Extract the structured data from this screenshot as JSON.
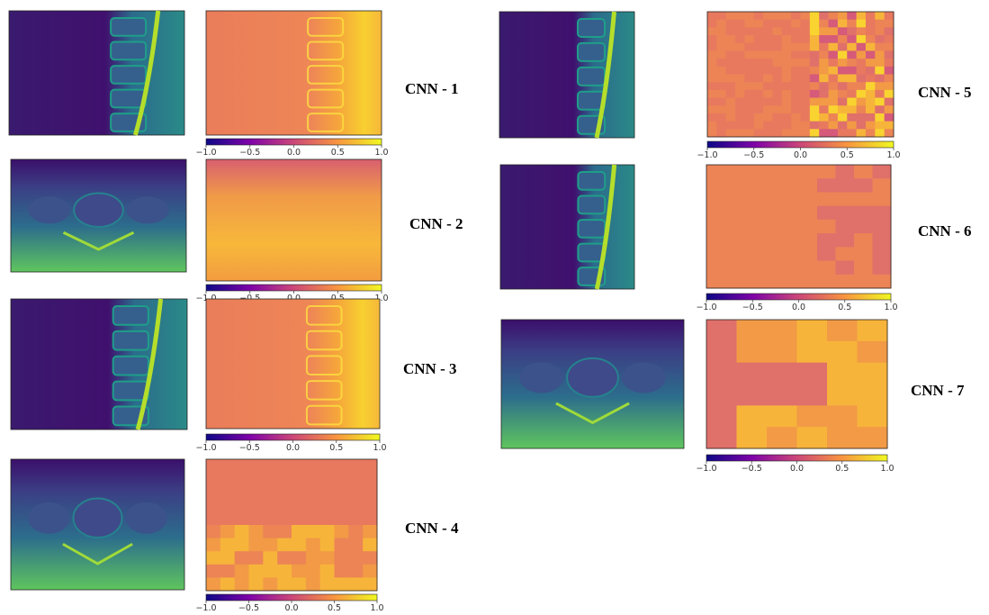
{
  "panels": [
    {
      "label": "CNN - 1"
    },
    {
      "label": "CNN - 2"
    },
    {
      "label": "CNN - 3"
    },
    {
      "label": "CNN - 4"
    },
    {
      "label": "CNN - 5"
    },
    {
      "label": "CNN - 6"
    },
    {
      "label": "CNN - 7"
    }
  ],
  "colorbar": {
    "ticks": [
      {
        "value": -1,
        "label": "−1.0"
      },
      {
        "value": -0.5,
        "label": "−0.5"
      },
      {
        "value": 0,
        "label": "0.0"
      },
      {
        "value": 0.5,
        "label": "0.5"
      },
      {
        "value": 1,
        "label": "1.0"
      }
    ],
    "lim": [
      -1,
      1
    ]
  }
}
